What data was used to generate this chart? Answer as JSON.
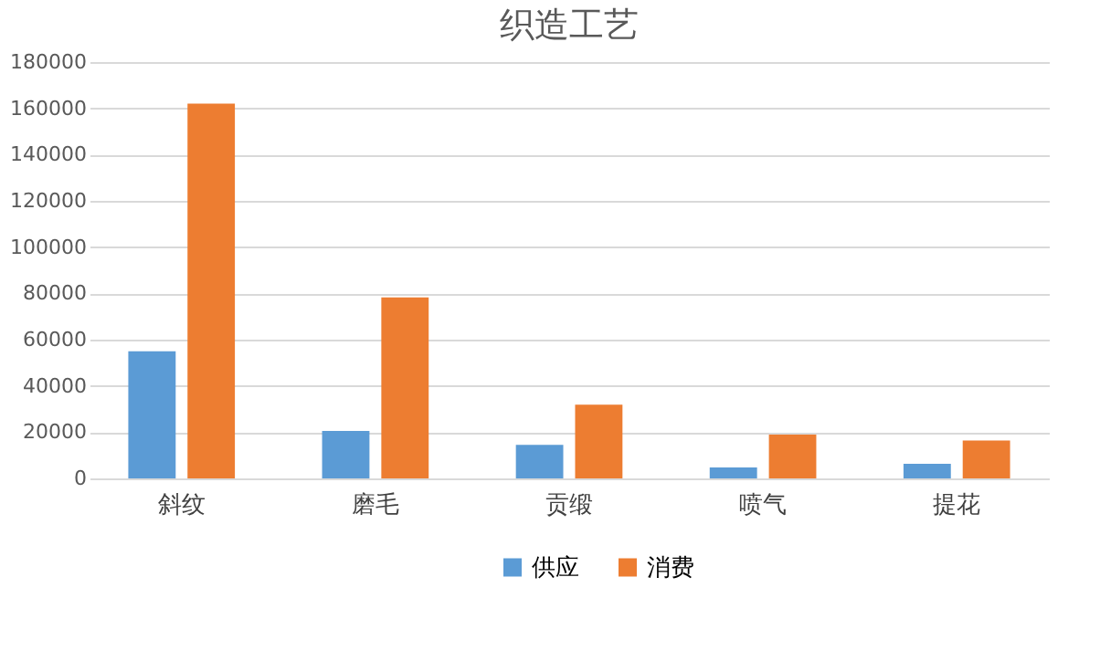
{
  "chart_data": {
    "type": "bar",
    "title": "织造工艺",
    "categories": [
      "斜纹",
      "磨毛",
      "贡缎",
      "喷气",
      "提花"
    ],
    "series": [
      {
        "name": "供应",
        "color": "#5b9bd5",
        "values": [
          55000,
          20500,
          14500,
          4700,
          6300
        ]
      },
      {
        "name": "消费",
        "color": "#ed7d31",
        "values": [
          162000,
          78300,
          31900,
          18900,
          16400
        ]
      }
    ],
    "ylim": [
      0,
      180000
    ],
    "yticks": [
      0,
      20000,
      40000,
      60000,
      80000,
      100000,
      120000,
      140000,
      160000,
      180000
    ],
    "grid": "y",
    "legend": "bottom"
  }
}
